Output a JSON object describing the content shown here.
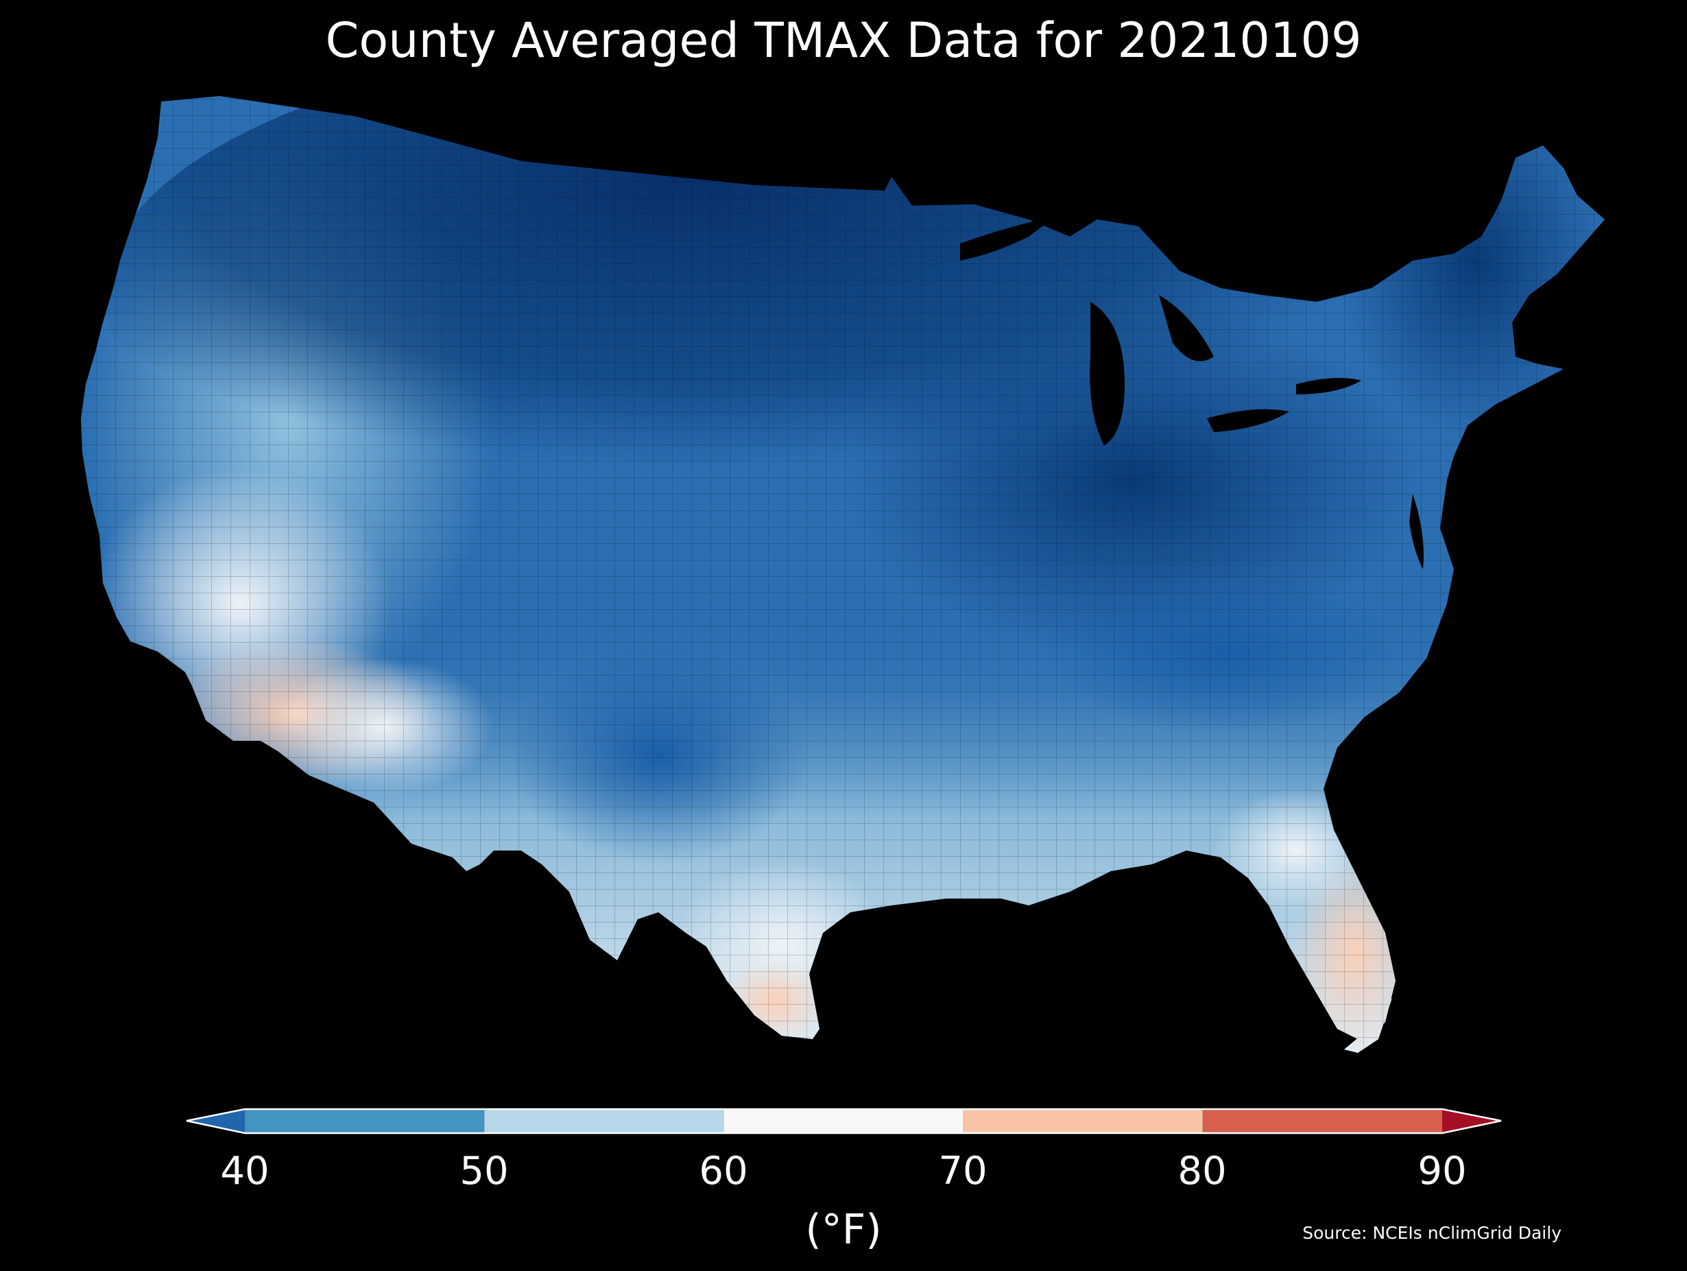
{
  "title": "County Averaged TMAX Data for 20210109",
  "colorbar": {
    "ticks": [
      "40",
      "50",
      "60",
      "70",
      "80",
      "90"
    ],
    "label": "(°F)",
    "bins": [
      {
        "range": [
          40,
          50
        ],
        "color": "#4393c3"
      },
      {
        "range": [
          50,
          60
        ],
        "color": "#b6d7e8"
      },
      {
        "range": [
          60,
          70
        ],
        "color": "#f7f7f7"
      },
      {
        "range": [
          70,
          80
        ],
        "color": "#f9c3a7"
      },
      {
        "range": [
          80,
          90
        ],
        "color": "#d6604d"
      }
    ],
    "under_color": "#2166ac",
    "over_color": "#a50f26"
  },
  "source": "Source: NCEIs nClimGrid Daily",
  "map": {
    "region": "Contiguous United States",
    "background": "#000000",
    "variable": "TMAX",
    "date": "20210109"
  }
}
